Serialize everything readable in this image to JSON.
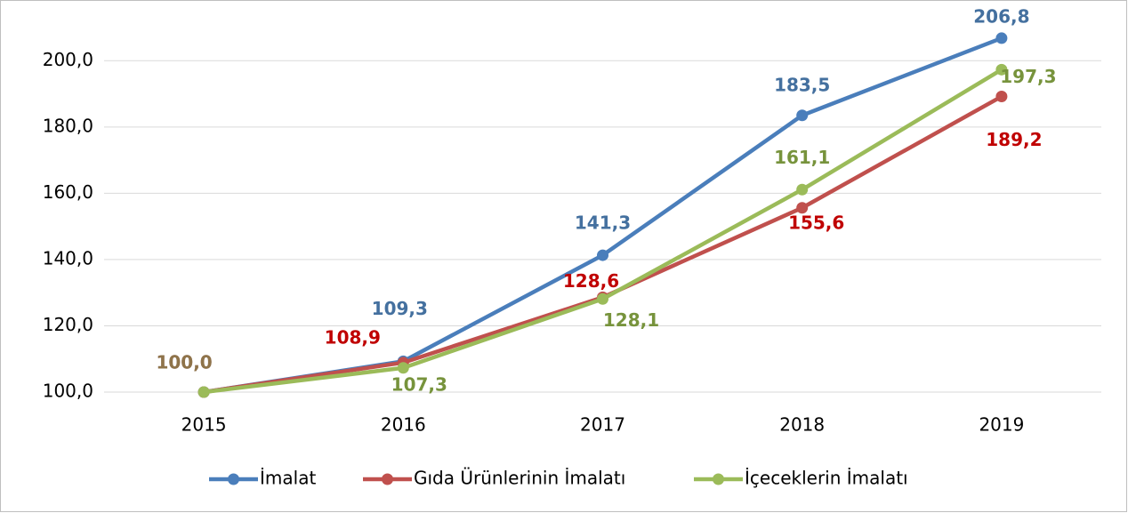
{
  "chart_data": {
    "type": "line",
    "categories": [
      "2015",
      "2016",
      "2017",
      "2018",
      "2019"
    ],
    "series": [
      {
        "name": "İmalat",
        "color": "#4a7ebb",
        "label_color": "#44709f",
        "values": [
          100.0,
          109.3,
          141.3,
          183.5,
          206.8
        ],
        "value_labels": [
          "100,0",
          "109,3",
          "141,3",
          "183,5",
          "206,8"
        ]
      },
      {
        "name": "Gıda Ürünlerinin İmalatı",
        "color": "#c0504d",
        "label_color": "#c00000",
        "values": [
          100.0,
          108.9,
          128.6,
          155.6,
          189.2
        ],
        "value_labels": [
          "100,0",
          "108,9",
          "128,6",
          "155,6",
          "189,2"
        ]
      },
      {
        "name": "İçeceklerin İmalatı",
        "color": "#9bbb59",
        "label_color": "#77933c",
        "values": [
          100.0,
          107.3,
          128.1,
          161.1,
          197.3
        ],
        "value_labels": [
          "100,0",
          "107,3",
          "128,1",
          "161,1",
          "197,3"
        ]
      }
    ],
    "ylim": [
      100,
      210
    ],
    "yticks": [
      {
        "value": 100,
        "label": "100,0"
      },
      {
        "value": 120,
        "label": "120,0"
      },
      {
        "value": 140,
        "label": "140,0"
      },
      {
        "value": 160,
        "label": "160,0"
      },
      {
        "value": 180,
        "label": "180,0"
      },
      {
        "value": 200,
        "label": "200,0"
      }
    ],
    "grid": true,
    "legend": "bottom"
  }
}
